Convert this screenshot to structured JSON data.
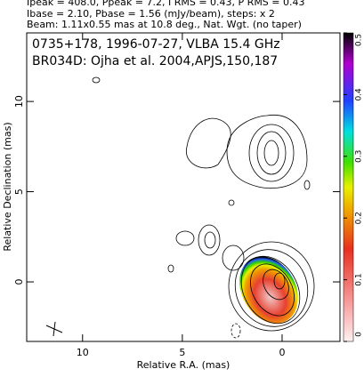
{
  "chart_data": {
    "type": "contour",
    "annotations": [
      "Ipeak = 408.0, Ppeak = 7.2, I RMS = 0.43, P RMS = 0.43",
      "Ibase = 2.10, Pbase = 1.56 (mJy/beam), steps: x 2",
      "Beam: 1.11x0.55 mas at 10.8 deg., Nat. Wgt. (no taper)"
    ],
    "title": "0735+178, 1996-07-27, VLBA 15.4 GHz",
    "subtitle": "BR034D: Ojha et al. 2004,APJS,150,187",
    "xlabel": "Relative R.A. (mas)",
    "ylabel": "Relative Declination (mas)",
    "xlim": [
      12.8,
      -2.9
    ],
    "ylim": [
      -3.3,
      13.8
    ],
    "xticks": [
      10,
      5,
      0
    ],
    "yticks": [
      0,
      5,
      10
    ],
    "clim": [
      0,
      0.5
    ],
    "cticks": [
      0,
      0.1,
      0.2,
      0.3,
      0.4,
      0.5
    ]
  }
}
